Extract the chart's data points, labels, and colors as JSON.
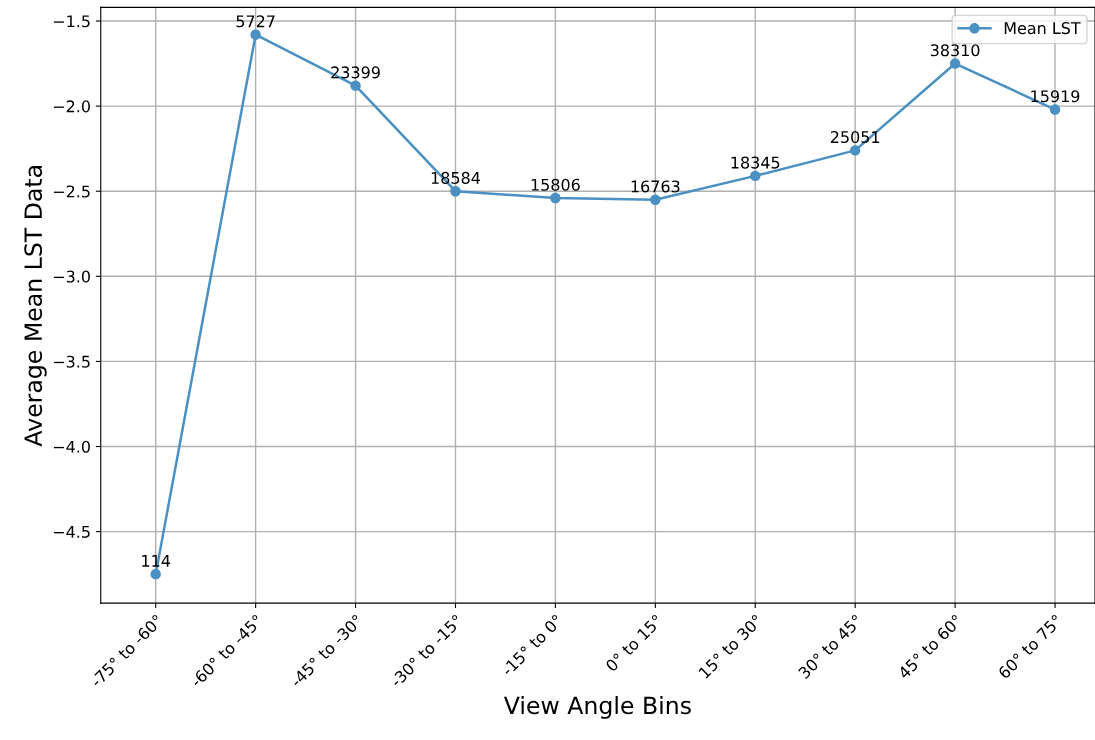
{
  "chart_data": {
    "type": "line",
    "xlabel": "View Angle Bins",
    "ylabel": "Average Mean LST Data",
    "categories": [
      "-75° to -60°",
      "-60° to -45°",
      "-45° to -30°",
      "-30° to -15°",
      "-15° to 0°",
      "0° to 15°",
      "15° to 30°",
      "30° to 45°",
      "45° to 60°",
      "60° to 75°"
    ],
    "series": [
      {
        "name": "Mean LST",
        "color": "#4a90c2",
        "values": [
          -4.75,
          -1.58,
          -1.88,
          -2.5,
          -2.54,
          -2.55,
          -2.41,
          -2.26,
          -1.75,
          -2.02
        ]
      }
    ],
    "annotations": [
      {
        "text": "114",
        "x": "-75° to -60°",
        "y": -4.75
      },
      {
        "text": "5727",
        "x": "-60° to -45°",
        "y": -1.58
      },
      {
        "text": "23399",
        "x": "-45° to -30°",
        "y": -1.88
      },
      {
        "text": "18584",
        "x": "-30° to -15°",
        "y": -2.5
      },
      {
        "text": "15806",
        "x": "-15° to 0°",
        "y": -2.54
      },
      {
        "text": "16763",
        "x": "0° to 15°",
        "y": -2.55
      },
      {
        "text": "18345",
        "x": "15° to 30°",
        "y": -2.41
      },
      {
        "text": "25051",
        "x": "30° to 45°",
        "y": -2.26
      },
      {
        "text": "38310",
        "x": "45° to 60°",
        "y": -1.75
      },
      {
        "text": "15919",
        "x": "60° to 75°",
        "y": -2.02
      }
    ],
    "ylim": [
      -4.92,
      -1.42
    ],
    "yticks": [
      {
        "value": -4.5,
        "label": "−4.5"
      },
      {
        "value": -4.0,
        "label": "−4.0"
      },
      {
        "value": -3.5,
        "label": "−3.5"
      },
      {
        "value": -3.0,
        "label": "−3.0"
      },
      {
        "value": -2.5,
        "label": "−2.5"
      },
      {
        "value": -2.0,
        "label": "−2.0"
      },
      {
        "value": -1.5,
        "label": "−1.5"
      }
    ],
    "grid": true,
    "legend": "top right",
    "marker": "circle",
    "line_style": "solid"
  }
}
